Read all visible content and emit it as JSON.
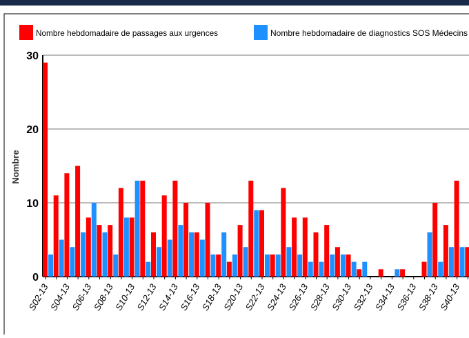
{
  "chart_data": {
    "type": "bar",
    "y_label": "Nombre",
    "categories": [
      "S02-13",
      null,
      "S04-13",
      null,
      "S06-13",
      null,
      "S08-13",
      null,
      "S10-13",
      null,
      "S12-13",
      null,
      "S14-13",
      null,
      "S16-13",
      null,
      "S18-13",
      null,
      "S20-13",
      null,
      "S22-13",
      null,
      "S24-13",
      null,
      "S26-13",
      null,
      "S28-13",
      null,
      "S30-13",
      null,
      "S32-13",
      null,
      "S34-13",
      null,
      "S36-13",
      null,
      "S38-13",
      null,
      "S40-13",
      null
    ],
    "series": [
      {
        "name": "Nombre hebdomadaire de passages aux urgences",
        "color": "#ff0000",
        "values": [
          29,
          11,
          14,
          15,
          8,
          7,
          7,
          12,
          8,
          13,
          6,
          11,
          13,
          10,
          6,
          10,
          3,
          2,
          7,
          13,
          9,
          3,
          12,
          8,
          8,
          6,
          7,
          4,
          3,
          1,
          0,
          1,
          0,
          1,
          0,
          2,
          10,
          7,
          13,
          4
        ]
      },
      {
        "name": "Nombre hebdomadaire de diagnostics SOS Médecins",
        "color": "#1e90ff",
        "values": [
          3,
          5,
          4,
          6,
          10,
          6,
          3,
          8,
          13,
          2,
          4,
          5,
          7,
          6,
          5,
          3,
          6,
          3,
          4,
          9,
          3,
          3,
          4,
          3,
          2,
          2,
          3,
          3,
          2,
          2,
          0,
          0,
          1,
          0,
          0,
          6,
          2,
          4,
          4,
          null
        ]
      }
    ],
    "ylim": [
      0,
      30
    ],
    "yticks": [
      0,
      10,
      20,
      30
    ],
    "grid": true,
    "legend": "top"
  }
}
